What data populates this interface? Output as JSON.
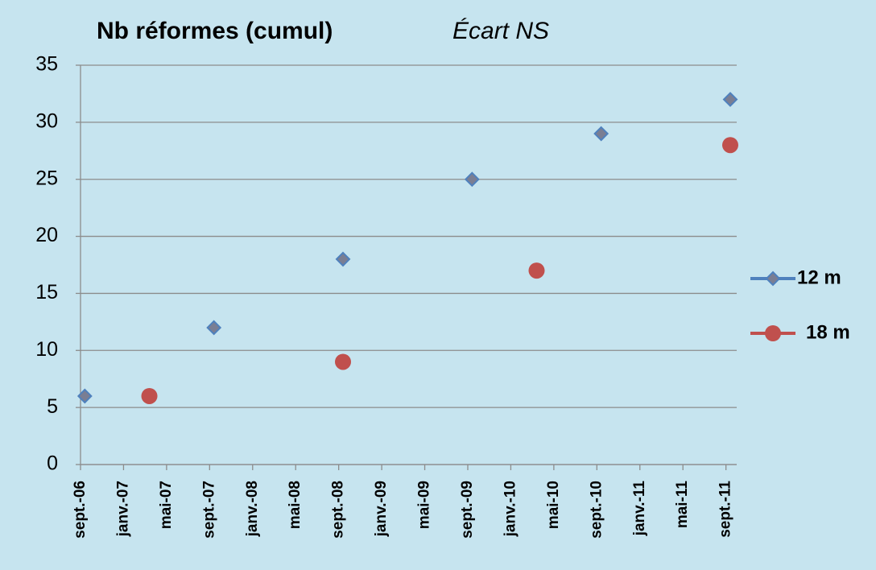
{
  "chart_data": {
    "type": "scatter",
    "title": "Nb réformes (cumul)",
    "subtitle": "Écart NS",
    "xlim": [
      "2006-09",
      "2011-10"
    ],
    "xticks": [
      {
        "value": "2006-09",
        "label": "sept.-06"
      },
      {
        "value": "2007-01",
        "label": "janv.-07"
      },
      {
        "value": "2007-05",
        "label": "mai-07"
      },
      {
        "value": "2007-09",
        "label": "sept.-07"
      },
      {
        "value": "2008-01",
        "label": "janv.-08"
      },
      {
        "value": "2008-05",
        "label": "mai-08"
      },
      {
        "value": "2008-09",
        "label": "sept.-08"
      },
      {
        "value": "2009-01",
        "label": "janv.-09"
      },
      {
        "value": "2009-05",
        "label": "mai-09"
      },
      {
        "value": "2009-09",
        "label": "sept.-09"
      },
      {
        "value": "2010-01",
        "label": "janv.-10"
      },
      {
        "value": "2010-05",
        "label": "mai-10"
      },
      {
        "value": "2010-09",
        "label": "sept.-10"
      },
      {
        "value": "2011-01",
        "label": "janv.-11"
      },
      {
        "value": "2011-05",
        "label": "mai-11"
      },
      {
        "value": "2011-09",
        "label": "sept.-11"
      }
    ],
    "ylim": [
      0,
      35
    ],
    "yticks": [
      0,
      5,
      10,
      15,
      20,
      25,
      30,
      35
    ],
    "grid": true,
    "legend": "right",
    "series": [
      {
        "name": "12 m",
        "color": "#4f81bd",
        "marker": "diamond",
        "x": [
          "2006-09",
          "2007-09",
          "2008-09",
          "2009-09",
          "2010-09",
          "2011-09"
        ],
        "values": [
          6,
          12,
          18,
          25,
          29,
          32
        ]
      },
      {
        "name": "18 m",
        "color": "#c0504d",
        "marker": "circle",
        "x": [
          "2007-03",
          "2008-09",
          "2010-03",
          "2011-09"
        ],
        "values": [
          6,
          9,
          17,
          28
        ]
      }
    ]
  }
}
